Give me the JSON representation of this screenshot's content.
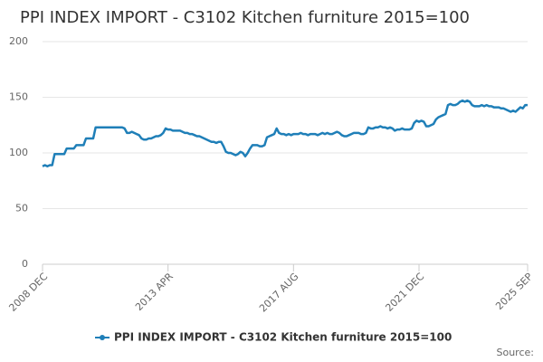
{
  "chart_data": {
    "type": "line",
    "title": "PPI INDEX IMPORT - C3102 Kitchen furniture 2015=100",
    "source": "Source:",
    "categories": [
      "2008 DEC",
      null,
      null,
      null,
      null,
      null,
      null,
      null,
      null,
      null,
      null,
      null,
      null,
      null,
      null,
      null,
      null,
      null,
      null,
      null,
      null,
      null,
      null,
      null,
      null,
      null,
      null,
      null,
      null,
      null,
      null,
      null,
      null,
      null,
      null,
      null,
      null,
      null,
      null,
      null,
      null,
      null,
      null,
      null,
      null,
      null,
      null,
      null,
      null,
      null,
      null,
      null,
      "2013 APR",
      null,
      null,
      null,
      null,
      null,
      null,
      null,
      null,
      null,
      null,
      null,
      null,
      null,
      null,
      null,
      null,
      null,
      null,
      null,
      null,
      null,
      null,
      null,
      null,
      null,
      null,
      null,
      null,
      null,
      null,
      null,
      null,
      null,
      null,
      null,
      null,
      null,
      null,
      null,
      null,
      null,
      null,
      null,
      null,
      null,
      null,
      null,
      null,
      null,
      null,
      null,
      "2017 AUG",
      null,
      null,
      null,
      null,
      null,
      null,
      null,
      null,
      null,
      null,
      null,
      null,
      null,
      null,
      null,
      null,
      null,
      null,
      null,
      null,
      null,
      null,
      null,
      null,
      null,
      null,
      null,
      null,
      null,
      null,
      null,
      null,
      null,
      null,
      null,
      null,
      null,
      null,
      null,
      null,
      null,
      null,
      null,
      null,
      null,
      null,
      null,
      null,
      null,
      null,
      null,
      "2021 DEC",
      null,
      null,
      null,
      null,
      null,
      null,
      null,
      null,
      null,
      null,
      null,
      null,
      null,
      null,
      null,
      null,
      null,
      null,
      null,
      null,
      null,
      null,
      null,
      null,
      null,
      null,
      null,
      null,
      null,
      null,
      null,
      null,
      null,
      null,
      null,
      null,
      null,
      null,
      null,
      null,
      null,
      null,
      null,
      null,
      "2025 SEP"
    ],
    "series": [
      {
        "name": "PPI INDEX IMPORT - C3102 Kitchen furniture 2015=100",
        "color": "#1f7fb8",
        "values": [
          88,
          89,
          88,
          89,
          89,
          99,
          99,
          99,
          99,
          99,
          104,
          104,
          104,
          104,
          107,
          107,
          107,
          107,
          113,
          113,
          113,
          113,
          123,
          123,
          123,
          123,
          123,
          123,
          123,
          123,
          123,
          123,
          123,
          123,
          122,
          118,
          118,
          119,
          118,
          117,
          116,
          113,
          112,
          112,
          113,
          113,
          114,
          115,
          115,
          116,
          118,
          122,
          121,
          121,
          120,
          120,
          120,
          120,
          119,
          118,
          118,
          117,
          117,
          116,
          115,
          115,
          114,
          113,
          112,
          111,
          110,
          110,
          109,
          110,
          110,
          106,
          101,
          100,
          100,
          99,
          98,
          99,
          101,
          100,
          97,
          100,
          104,
          107,
          107,
          107,
          106,
          106,
          107,
          114,
          115,
          116,
          117,
          122,
          118,
          117,
          117,
          116,
          117,
          116,
          117,
          117,
          117,
          118,
          117,
          117,
          116,
          117,
          117,
          117,
          116,
          117,
          118,
          117,
          118,
          117,
          117,
          118,
          119,
          118,
          116,
          115,
          115,
          116,
          117,
          118,
          118,
          118,
          117,
          117,
          118,
          123,
          122,
          122,
          123,
          123,
          124,
          123,
          123,
          122,
          123,
          122,
          120,
          121,
          121,
          122,
          121,
          121,
          121,
          122,
          127,
          129,
          128,
          129,
          128,
          124,
          124,
          125,
          126,
          130,
          132,
          133,
          134,
          135,
          143,
          144,
          143,
          143,
          144,
          146,
          147,
          146,
          147,
          146,
          143,
          142,
          142,
          142,
          143,
          142,
          143,
          142,
          142,
          141,
          141,
          141,
          140,
          140,
          139,
          138,
          137,
          138,
          137,
          139,
          141,
          140,
          143,
          143
        ]
      }
    ],
    "ylim": [
      0,
      200
    ],
    "yticks": [
      0,
      50,
      100,
      150,
      200
    ],
    "grid": true
  }
}
